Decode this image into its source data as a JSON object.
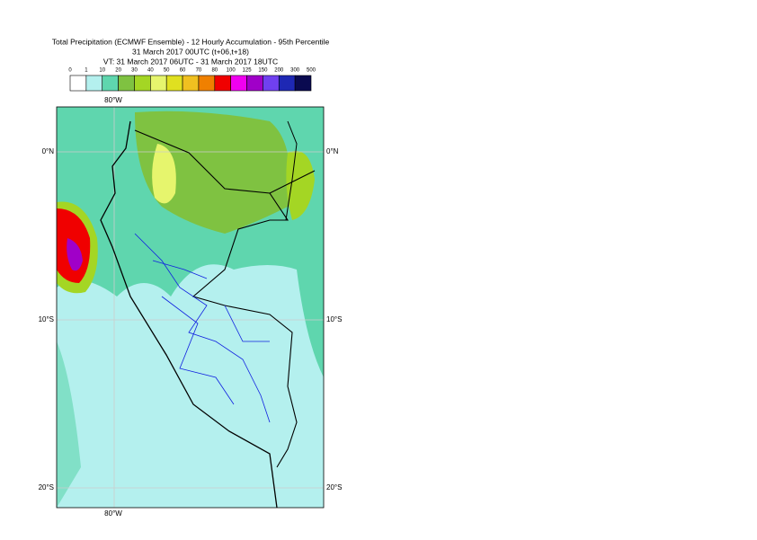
{
  "header": {
    "title": "Total Precipitation (ECMWF Ensemble) - 12 Hourly Accumulation - 95th Percentile",
    "run": "31 March 2017 00UTC (t+06,t+18)",
    "valid": "VT: 31 March 2017 06UTC - 31 March 2017 18UTC"
  },
  "legend": {
    "labels": [
      "0",
      "1",
      "10",
      "20",
      "30",
      "40",
      "50",
      "60",
      "70",
      "80",
      "100",
      "125",
      "150",
      "200",
      "300",
      "500"
    ],
    "colors": [
      "#ffffff",
      "#b4f0ee",
      "#5fd6ae",
      "#7fc241",
      "#a4d624",
      "#e6f56d",
      "#e0e020",
      "#f0c020",
      "#f08000",
      "#f00000",
      "#f000f0",
      "#a000c8",
      "#7040f0",
      "#1e28b4",
      "#0a0a50"
    ]
  },
  "map": {
    "lon_top": "80°W",
    "lon_bottom": "80°W",
    "lat_labels": [
      "0°N",
      "10°S",
      "20°S"
    ]
  }
}
